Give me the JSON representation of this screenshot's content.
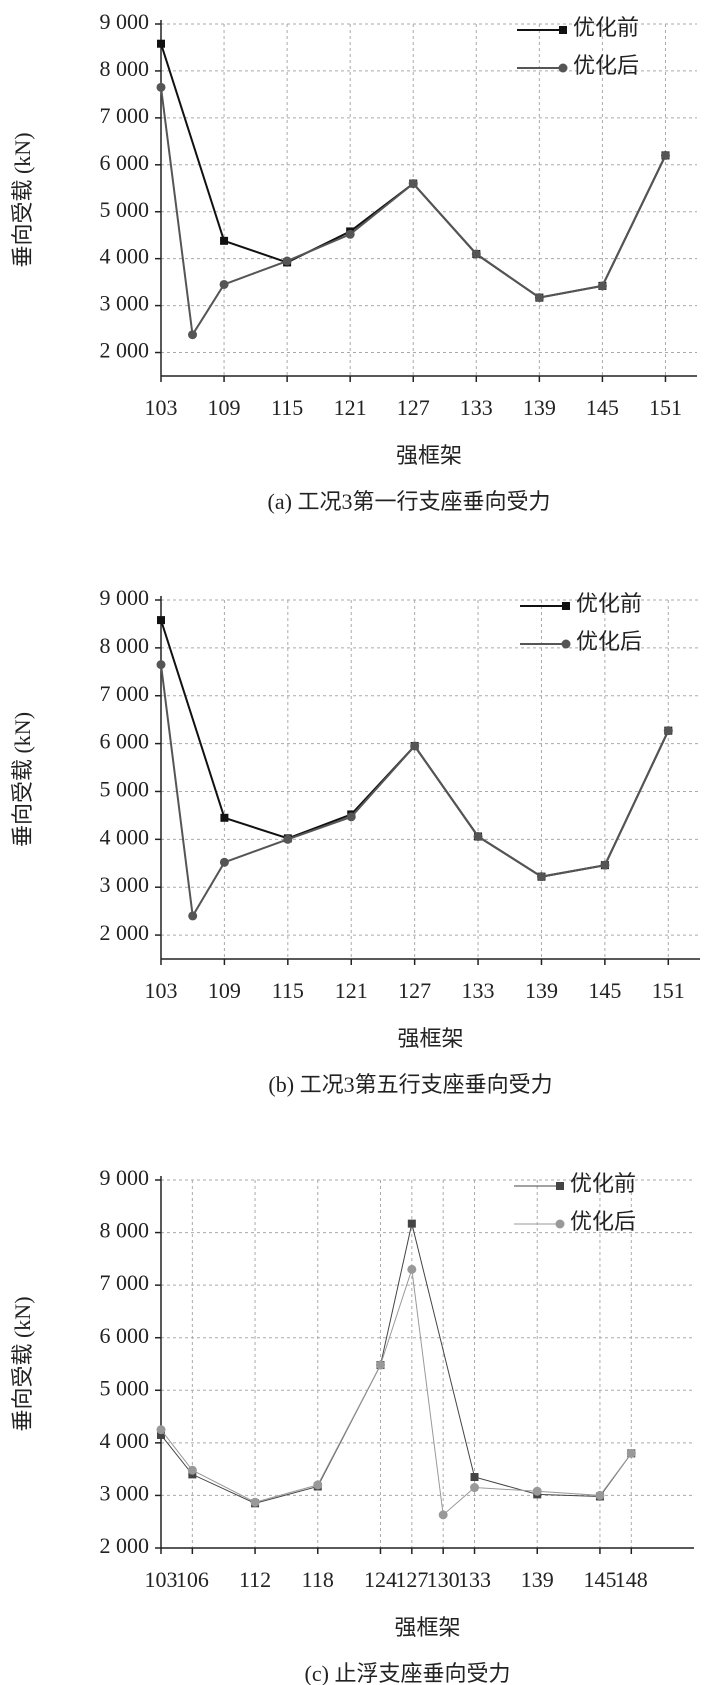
{
  "chart_data": [
    {
      "type": "line",
      "x_label": "强框架",
      "y_label": "垂向受载 (kN)",
      "caption": "(a) 工况3第一行支座垂向受力",
      "xlim": [
        103,
        154
      ],
      "xticks": [
        103,
        109,
        115,
        121,
        127,
        133,
        139,
        145,
        151
      ],
      "ylim": [
        1500,
        9000
      ],
      "yticks": [
        {
          "value": 2000,
          "label": "2 000"
        },
        {
          "value": 3000,
          "label": "3 000"
        },
        {
          "value": 4000,
          "label": "4 000"
        },
        {
          "value": 5000,
          "label": "5 000"
        },
        {
          "value": 6000,
          "label": "6 000"
        },
        {
          "value": 7000,
          "label": "7 000"
        },
        {
          "value": 8000,
          "label": "8 000"
        },
        {
          "value": 9000,
          "label": "9 000"
        }
      ],
      "grid": true,
      "legend": "upper right",
      "series": [
        {
          "name": "优化前",
          "color": "#111111",
          "marker": "square",
          "x": [
            103,
            109,
            115,
            121,
            127,
            133,
            139,
            145,
            151
          ],
          "values": [
            8580,
            4380,
            3920,
            4580,
            5600,
            4100,
            3170,
            3420,
            6200
          ]
        },
        {
          "name": "优化后",
          "color": "#555555",
          "marker": "circle",
          "x": [
            103,
            106,
            109,
            115,
            121,
            127,
            133,
            139,
            145,
            151
          ],
          "values": [
            7650,
            2380,
            3450,
            3950,
            4520,
            5600,
            4100,
            3170,
            3420,
            6200
          ]
        }
      ]
    },
    {
      "type": "line",
      "x_label": "强框架",
      "y_label": "垂向受载 (kN)",
      "caption": "(b) 工况3第五行支座垂向受力",
      "xlim": [
        103,
        154
      ],
      "xticks": [
        103,
        109,
        115,
        121,
        127,
        133,
        139,
        145,
        151
      ],
      "ylim": [
        1500,
        9000
      ],
      "yticks": [
        {
          "value": 2000,
          "label": "2 000"
        },
        {
          "value": 3000,
          "label": "3 000"
        },
        {
          "value": 4000,
          "label": "4 000"
        },
        {
          "value": 5000,
          "label": "5 000"
        },
        {
          "value": 6000,
          "label": "6 000"
        },
        {
          "value": 7000,
          "label": "7 000"
        },
        {
          "value": 8000,
          "label": "8 000"
        },
        {
          "value": 9000,
          "label": "9 000"
        }
      ],
      "grid": true,
      "legend": "upper right",
      "series": [
        {
          "name": "优化前",
          "color": "#111111",
          "marker": "square",
          "x": [
            103,
            109,
            115,
            121,
            127,
            133,
            139,
            145,
            151
          ],
          "values": [
            8580,
            4450,
            4020,
            4520,
            5950,
            4060,
            3220,
            3460,
            6270
          ]
        },
        {
          "name": "优化后",
          "color": "#555555",
          "marker": "circle",
          "x": [
            103,
            106,
            109,
            115,
            121,
            127,
            133,
            139,
            145,
            151
          ],
          "values": [
            7650,
            2400,
            3520,
            4000,
            4470,
            5950,
            4060,
            3220,
            3460,
            6270
          ]
        }
      ]
    },
    {
      "type": "line",
      "x_label": "强框架",
      "y_label": "垂向受载 (kN)",
      "caption": "(c) 止浮支座垂向受力",
      "xlim": [
        103,
        154
      ],
      "xticks": [
        103,
        106,
        112,
        118,
        124,
        127,
        130,
        133,
        139,
        145,
        148
      ],
      "ylim": [
        2000,
        9000
      ],
      "yticks": [
        {
          "value": 2000,
          "label": "2 000"
        },
        {
          "value": 3000,
          "label": "3 000"
        },
        {
          "value": 4000,
          "label": "4 000"
        },
        {
          "value": 5000,
          "label": "5 000"
        },
        {
          "value": 6000,
          "label": "6 000"
        },
        {
          "value": 7000,
          "label": "7 000"
        },
        {
          "value": 8000,
          "label": "8 000"
        },
        {
          "value": 9000,
          "label": "9 000"
        }
      ],
      "grid": true,
      "legend": "upper right",
      "series": [
        {
          "name": "优化前",
          "color": "#444444",
          "marker": "square",
          "x": [
            103,
            106,
            112,
            118,
            124,
            127,
            133,
            139,
            145,
            148
          ],
          "values": [
            4150,
            3400,
            2850,
            3170,
            5480,
            8170,
            3350,
            3020,
            2980,
            3800
          ]
        },
        {
          "name": "优化后",
          "color": "#999999",
          "marker": "circle",
          "x": [
            103,
            106,
            112,
            118,
            124,
            127,
            130,
            133,
            139,
            145,
            148
          ],
          "values": [
            4250,
            3480,
            2870,
            3200,
            5480,
            7300,
            2630,
            3150,
            3080,
            3000,
            3800
          ]
        }
      ]
    }
  ]
}
